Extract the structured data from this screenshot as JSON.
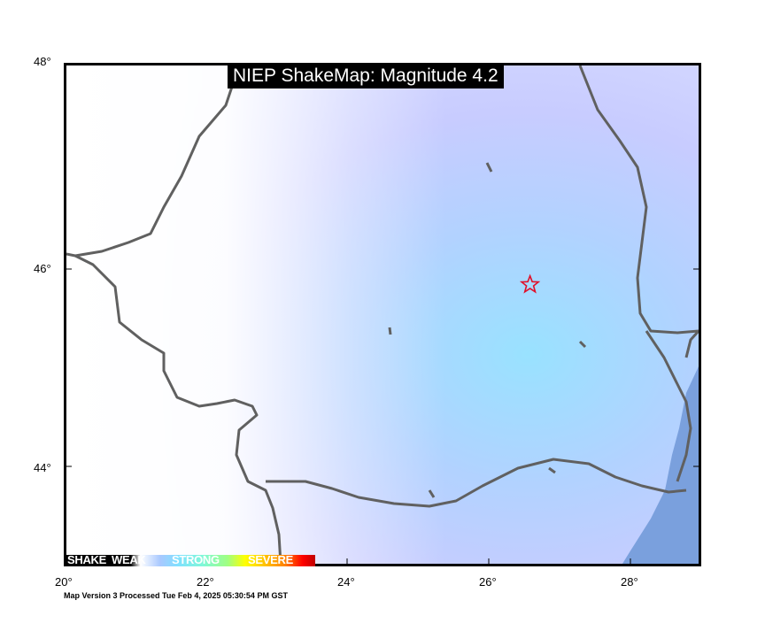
{
  "title": "NIEP ShakeMap: Magnitude 4.2",
  "footer": "Map Version 3 Processed Tue Feb  4, 2025 05:30:54 PM GST",
  "axes": {
    "lon_ticks": [
      "20°",
      "22°",
      "24°",
      "26°",
      "28°"
    ],
    "lat_ticks": [
      "48°",
      "46°",
      "44°"
    ]
  },
  "legend": {
    "labels": [
      "SHAKE",
      "WEAK",
      "STRONG",
      "SEVERE"
    ]
  },
  "epicenter": {
    "lon": 26.6,
    "lat": 45.8
  },
  "extent": {
    "lon": [
      20,
      29
    ],
    "lat": [
      43,
      48
    ]
  },
  "colors": {
    "border": "#606060",
    "epicenter": "#e0102a",
    "sea": "#7aa0dd",
    "intensity_high": "#99e2ff",
    "intensity_low": "#c8ccff"
  }
}
